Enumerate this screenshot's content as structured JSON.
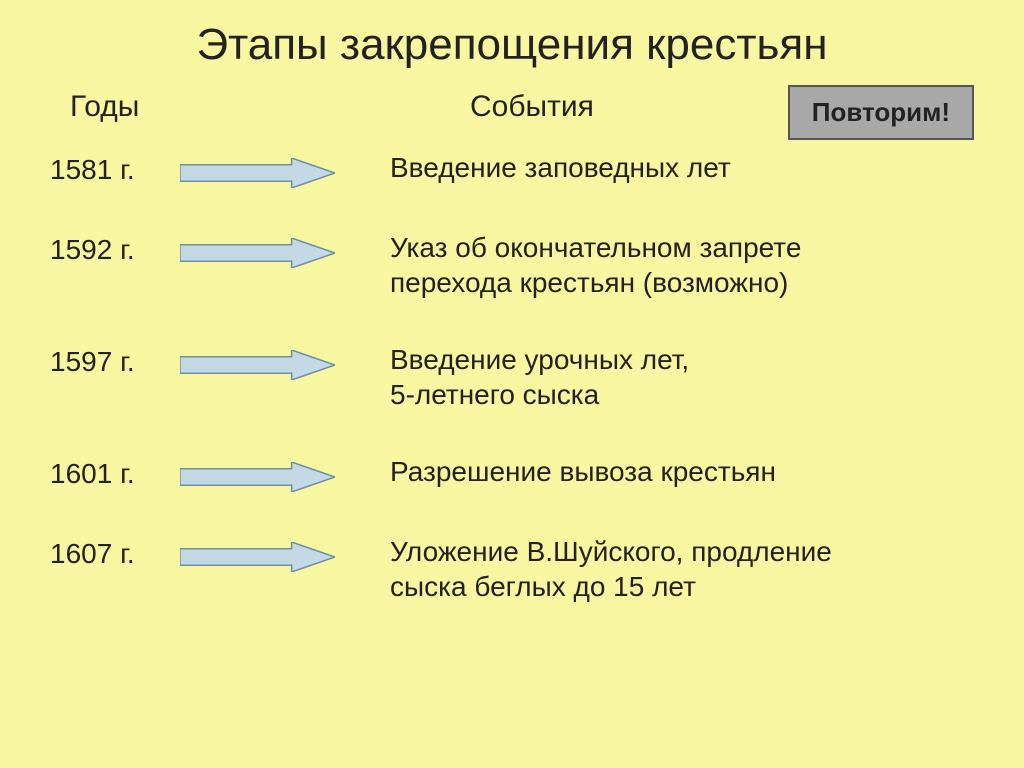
{
  "background_color": "#f8f6a0",
  "text_color": "#222222",
  "title": "Этапы закрепощения крестьян",
  "title_fontsize": 44,
  "header_years": "Годы",
  "header_events": "События",
  "header_fontsize": 30,
  "button": {
    "label": "Повторим!",
    "bg": "#a8a8a8",
    "border": "#555555"
  },
  "arrow": {
    "fill": "#c3d9e4",
    "stroke": "#6b8fa3",
    "width": 155,
    "height": 30
  },
  "rows": [
    {
      "year": "1581 г.",
      "event": "Введение заповедных лет"
    },
    {
      "year": "1592 г.",
      "event": "Указ об окончательном запрете\n перехода крестьян (возможно)"
    },
    {
      "year": "1597 г.",
      "event": "Введение урочных лет,\n5-летнего сыска"
    },
    {
      "year": "1601 г.",
      "event": "Разрешение вывоза крестьян"
    },
    {
      "year": "1607 г.",
      "event": "Уложение В.Шуйского, продление\nсыска беглых до 15 лет"
    }
  ],
  "row_fontsize": 28
}
